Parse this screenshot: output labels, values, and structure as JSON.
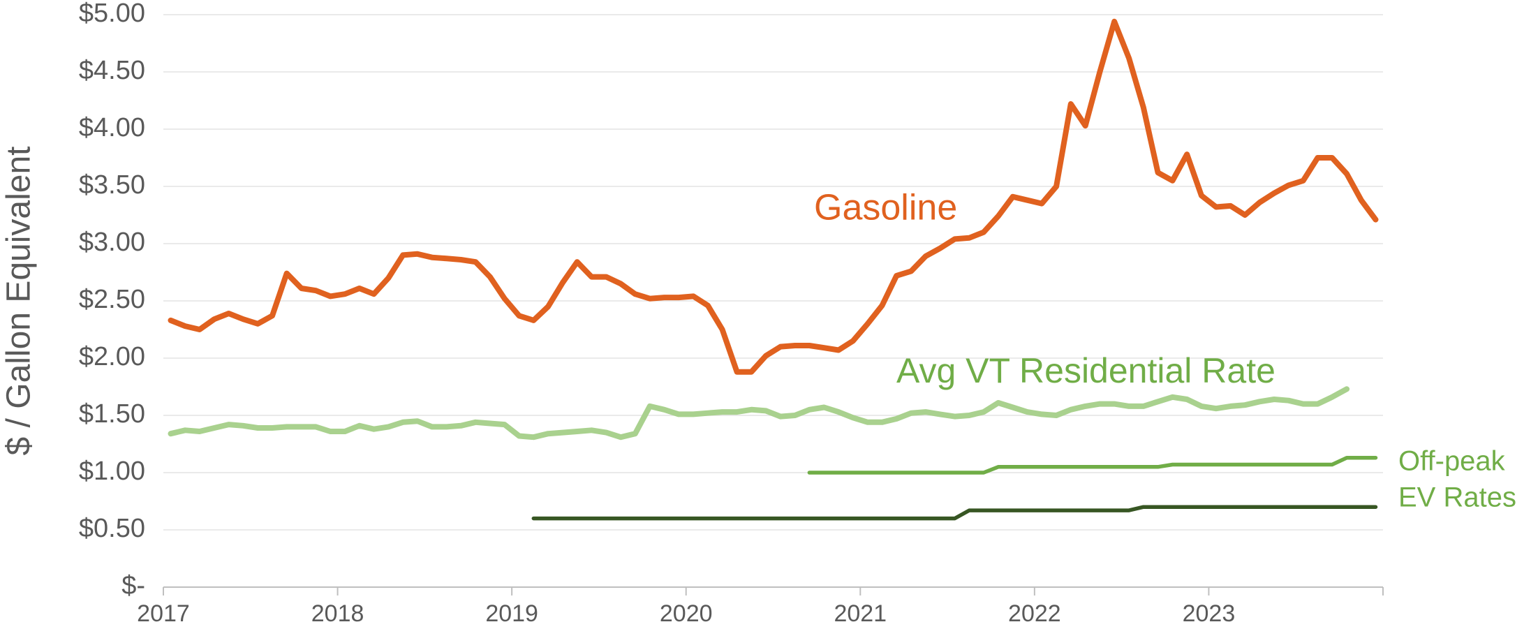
{
  "chart_data": {
    "type": "line",
    "y_label": "$ / Gallon Equivalent",
    "x": [
      2017.042,
      2017.125,
      2017.208,
      2017.292,
      2017.375,
      2017.458,
      2017.542,
      2017.625,
      2017.708,
      2017.792,
      2017.875,
      2017.958,
      2018.042,
      2018.125,
      2018.208,
      2018.292,
      2018.375,
      2018.458,
      2018.542,
      2018.625,
      2018.708,
      2018.792,
      2018.875,
      2018.958,
      2019.042,
      2019.125,
      2019.208,
      2019.292,
      2019.375,
      2019.458,
      2019.542,
      2019.625,
      2019.708,
      2019.792,
      2019.875,
      2019.958,
      2020.042,
      2020.125,
      2020.208,
      2020.292,
      2020.375,
      2020.458,
      2020.542,
      2020.625,
      2020.708,
      2020.792,
      2020.875,
      2020.958,
      2021.042,
      2021.125,
      2021.208,
      2021.292,
      2021.375,
      2021.458,
      2021.542,
      2021.625,
      2021.708,
      2021.792,
      2021.875,
      2021.958,
      2022.042,
      2022.125,
      2022.208,
      2022.292,
      2022.375,
      2022.458,
      2022.542,
      2022.625,
      2022.708,
      2022.792,
      2022.875,
      2022.958,
      2023.042,
      2023.125,
      2023.208,
      2023.292,
      2023.375,
      2023.458,
      2023.542,
      2023.625,
      2023.708,
      2023.792,
      2023.875,
      2023.958
    ],
    "series": [
      {
        "name": "Gasoline",
        "color": "#e0611f",
        "width": 8,
        "values": [
          2.33,
          2.28,
          2.25,
          2.34,
          2.39,
          2.34,
          2.3,
          2.37,
          2.74,
          2.61,
          2.59,
          2.54,
          2.56,
          2.61,
          2.56,
          2.7,
          2.9,
          2.91,
          2.88,
          2.87,
          2.86,
          2.84,
          2.71,
          2.52,
          2.37,
          2.33,
          2.45,
          2.66,
          2.84,
          2.71,
          2.71,
          2.65,
          2.56,
          2.52,
          2.53,
          2.53,
          2.54,
          2.46,
          2.25,
          1.88,
          1.88,
          2.02,
          2.1,
          2.11,
          2.11,
          2.09,
          2.07,
          2.15,
          2.3,
          2.46,
          2.72,
          2.76,
          2.89,
          2.96,
          3.04,
          3.05,
          3.1,
          3.24,
          3.41,
          3.38,
          3.35,
          3.5,
          4.22,
          4.03,
          4.5,
          4.94,
          4.62,
          4.19,
          3.62,
          3.55,
          3.78,
          3.42,
          3.32,
          3.33,
          3.25,
          3.36,
          3.44,
          3.51,
          3.55,
          3.75,
          3.75,
          3.61,
          3.38,
          3.21
        ]
      },
      {
        "name": "Avg VT Residential Rate",
        "color": "#a9d18e",
        "width": 8,
        "values": [
          1.34,
          1.37,
          1.36,
          1.39,
          1.42,
          1.41,
          1.39,
          1.39,
          1.4,
          1.4,
          1.4,
          1.36,
          1.36,
          1.41,
          1.38,
          1.4,
          1.44,
          1.45,
          1.4,
          1.4,
          1.41,
          1.44,
          1.43,
          1.42,
          1.32,
          1.31,
          1.34,
          1.35,
          1.36,
          1.37,
          1.35,
          1.31,
          1.34,
          1.58,
          1.55,
          1.51,
          1.51,
          1.52,
          1.53,
          1.53,
          1.55,
          1.54,
          1.49,
          1.5,
          1.55,
          1.57,
          1.53,
          1.48,
          1.44,
          1.44,
          1.47,
          1.52,
          1.53,
          1.51,
          1.49,
          1.5,
          1.53,
          1.61,
          1.57,
          1.53,
          1.51,
          1.5,
          1.55,
          1.58,
          1.6,
          1.6,
          1.58,
          1.58,
          1.62,
          1.66,
          1.64,
          1.58,
          1.56,
          1.58,
          1.59,
          1.62,
          1.64,
          1.63,
          1.6,
          1.6,
          1.66,
          1.73,
          null,
          null
        ]
      },
      {
        "color": "#70ad47",
        "width": 5.5,
        "values": [
          null,
          null,
          null,
          null,
          null,
          null,
          null,
          null,
          null,
          null,
          null,
          null,
          null,
          null,
          null,
          null,
          null,
          null,
          null,
          null,
          null,
          null,
          null,
          null,
          null,
          null,
          null,
          null,
          null,
          null,
          null,
          null,
          null,
          null,
          null,
          null,
          null,
          null,
          null,
          null,
          null,
          null,
          null,
          null,
          1.0,
          1.0,
          1.0,
          1.0,
          1.0,
          1.0,
          1.0,
          1.0,
          1.0,
          1.0,
          1.0,
          1.0,
          1.0,
          1.05,
          1.05,
          1.05,
          1.05,
          1.05,
          1.05,
          1.05,
          1.05,
          1.05,
          1.05,
          1.05,
          1.05,
          1.07,
          1.07,
          1.07,
          1.07,
          1.07,
          1.07,
          1.07,
          1.07,
          1.07,
          1.07,
          1.07,
          1.07,
          1.13,
          1.13,
          1.13
        ]
      },
      {
        "color": "#375623",
        "width": 5.5,
        "values": [
          null,
          null,
          null,
          null,
          null,
          null,
          null,
          null,
          null,
          null,
          null,
          null,
          null,
          null,
          null,
          null,
          null,
          null,
          null,
          null,
          null,
          null,
          null,
          null,
          null,
          0.6,
          0.6,
          0.6,
          0.6,
          0.6,
          0.6,
          0.6,
          0.6,
          0.6,
          0.6,
          0.6,
          0.6,
          0.6,
          0.6,
          0.6,
          0.6,
          0.6,
          0.6,
          0.6,
          0.6,
          0.6,
          0.6,
          0.6,
          0.6,
          0.6,
          0.6,
          0.6,
          0.6,
          0.6,
          0.6,
          0.67,
          0.67,
          0.67,
          0.67,
          0.67,
          0.67,
          0.67,
          0.67,
          0.67,
          0.67,
          0.67,
          0.67,
          0.7,
          0.7,
          0.7,
          0.7,
          0.7,
          0.7,
          0.7,
          0.7,
          0.7,
          0.7,
          0.7,
          0.7,
          0.7,
          0.7,
          0.7,
          0.7,
          0.7
        ]
      }
    ],
    "annotations": [
      {
        "lines": [
          "Gasoline"
        ],
        "color": "#e0611f"
      },
      {
        "lines": [
          "Avg VT Residential Rate"
        ],
        "color": "#70ad47"
      },
      {
        "lines": [
          "Off-peak",
          "EV Rates"
        ],
        "color": "#70ad47"
      }
    ],
    "xlim": [
      2017,
      2024
    ],
    "xticks": [
      2017,
      2018,
      2019,
      2020,
      2021,
      2022,
      2023
    ],
    "ylim": [
      0,
      5
    ],
    "yticks": [
      {
        "value": 0,
        "label": "$-"
      },
      {
        "value": 0.5,
        "label": "$0.50"
      },
      {
        "value": 1,
        "label": "$1.00"
      },
      {
        "value": 1.5,
        "label": "$1.50"
      },
      {
        "value": 2,
        "label": "$2.00"
      },
      {
        "value": 2.5,
        "label": "$2.50"
      },
      {
        "value": 3,
        "label": "$3.00"
      },
      {
        "value": 3.5,
        "label": "$3.50"
      },
      {
        "value": 4,
        "label": "$4.00"
      },
      {
        "value": 4.5,
        "label": "$4.50"
      },
      {
        "value": 5,
        "label": "$5.00"
      }
    ],
    "grid": true
  }
}
